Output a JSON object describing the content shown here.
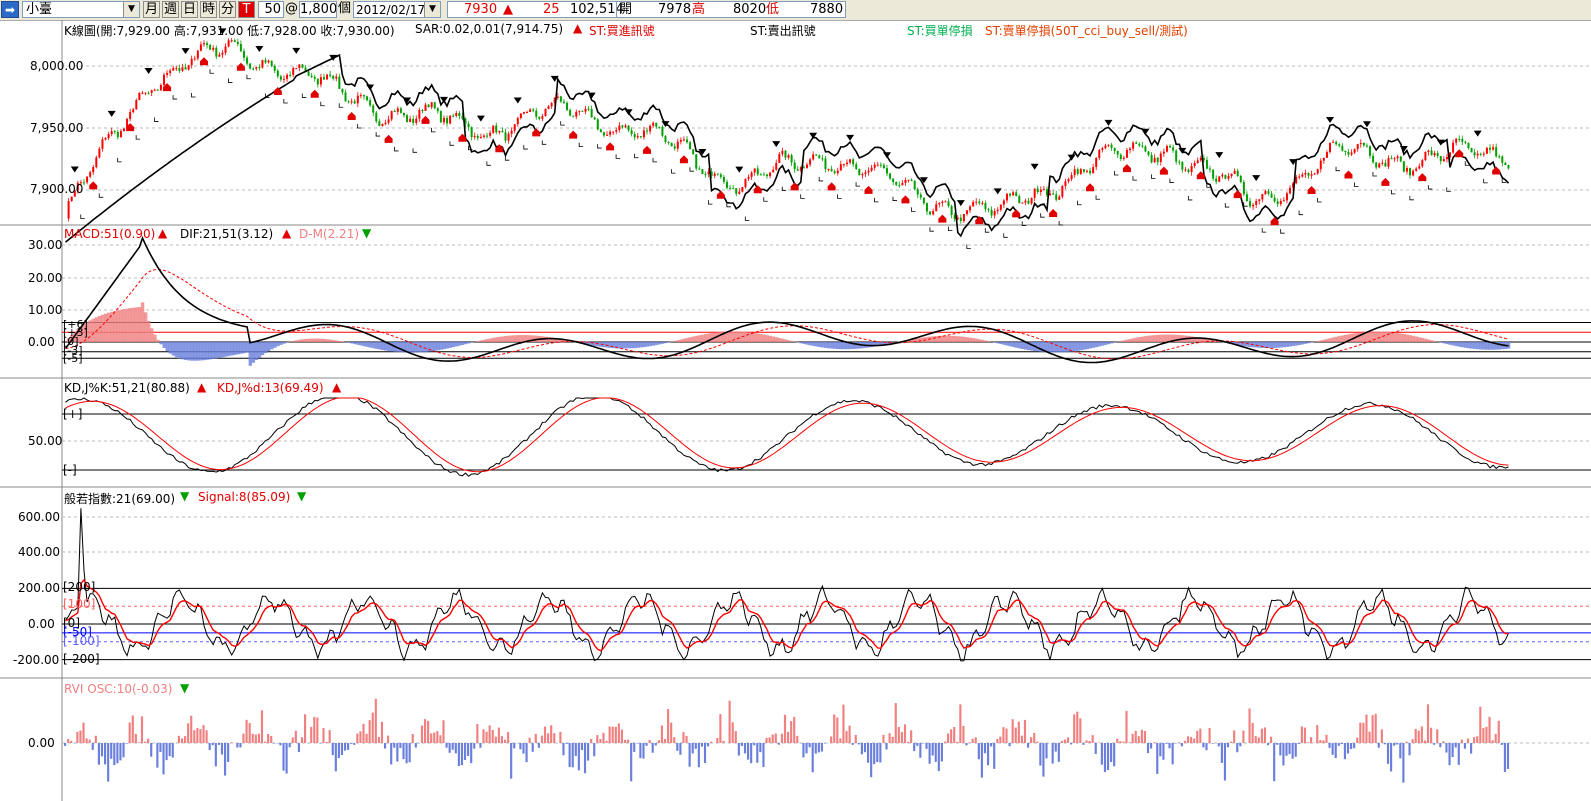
{
  "toolbar": {
    "symbol": "小臺",
    "periods": [
      "月",
      "週",
      "日",
      "時",
      "分"
    ],
    "tick_btn": "T",
    "interval": "50",
    "at": "@",
    "count": "1,800",
    "unit": "個",
    "date": "2012/02/17",
    "last_price": "7930",
    "change": "25",
    "volume": "102,514",
    "open_label": "開",
    "open_value": "7978",
    "high_label": "高",
    "high_value": "8020",
    "low_label": "低",
    "low_value": "7880"
  },
  "colors": {
    "up": "#ff0000",
    "down": "#00a000",
    "pos_bar": "#f08080",
    "neg_bar": "#6a7fdc",
    "line": "#000000",
    "signal": "#ff0000"
  },
  "panels": {
    "price": {
      "header_ohlc": "K線圖(開:7,929.00 高:7,931.00 低:7,928.00 收:7,930.00)",
      "header_sar": "SAR:0.02,0.01(7,914.75)",
      "header_buy": "ST:買進訊號",
      "header_sell": "ST:賣出訊號",
      "header_buy_stop": "ST:買單停損",
      "header_sell_stop": "ST:賣單停損(50T_cci_buy_sell/測試)",
      "yticks": [
        "8,000.00",
        "7,950.00",
        "7,900.00"
      ]
    },
    "macd": {
      "header_macd": "MACD:51(0.90)",
      "header_dif": "DIF:21,51(3.12)",
      "header_dm": "D-M(2.21)",
      "yticks": [
        "30.00",
        "20.00",
        "10.00",
        "0.00"
      ],
      "ref_labels": [
        "[+6]",
        "[+3]",
        "[0]",
        "[-3]",
        "[-5]"
      ]
    },
    "kd": {
      "header_k": "KD,J%K:51,21(80.88)",
      "header_d": "KD,J%d:13(69.49)",
      "yticks": [
        "50.00"
      ],
      "ref_labels": [
        "[+]",
        "[-]"
      ]
    },
    "cci": {
      "header_cci": "般若指數:21(69.00)",
      "header_signal": "Signal:8(85.09)",
      "yticks": [
        "600.00",
        "400.00",
        "200.00",
        "0.00",
        "-200.00"
      ],
      "ref_labels": [
        "[200]",
        "[100]",
        "[0]",
        "[-50]",
        "[-100]",
        "[-200]"
      ]
    },
    "rvi": {
      "header": "RVI OSC:10(-0.03)",
      "yticks": [
        "0.00"
      ]
    }
  },
  "chart_data": [
    {
      "type": "candlestick",
      "title": "K線圖",
      "series": [
        {
          "name": "K線",
          "open_last": 7929,
          "high_last": 7931,
          "low_last": 7928,
          "close_last": 7930
        },
        {
          "name": "SAR",
          "last": 7914.75
        }
      ],
      "ylim": [
        7870,
        8030
      ],
      "approx_close_path": [
        7880,
        7990,
        8015,
        7985,
        7960,
        7950,
        7965,
        7940,
        7905,
        7930,
        7895,
        7880,
        7920,
        7935,
        7890,
        7930,
        7925,
        7930
      ]
    },
    {
      "type": "line",
      "title": "MACD",
      "series": [
        {
          "name": "DIF",
          "last": 3.12
        },
        {
          "name": "MACD",
          "last": 0.9
        },
        {
          "name": "D-M",
          "last": 2.21
        }
      ],
      "ylim": [
        -10,
        33
      ],
      "ref_lines": [
        6,
        3,
        0,
        -3,
        -5
      ]
    },
    {
      "type": "line",
      "title": "KD",
      "series": [
        {
          "name": "K",
          "last": 80.88
        },
        {
          "name": "d",
          "last": 69.49
        }
      ],
      "ylim": [
        0,
        100
      ]
    },
    {
      "type": "line",
      "title": "般若指數",
      "series": [
        {
          "name": "般若指數",
          "last": 69.0
        },
        {
          "name": "Signal",
          "last": 85.09
        }
      ],
      "ylim": [
        -300,
        700
      ],
      "ref_lines": [
        200,
        100,
        0,
        -50,
        -100,
        -200
      ]
    },
    {
      "type": "bar",
      "title": "RVI OSC",
      "series": [
        {
          "name": "RVI OSC",
          "last": -0.03
        }
      ]
    }
  ]
}
